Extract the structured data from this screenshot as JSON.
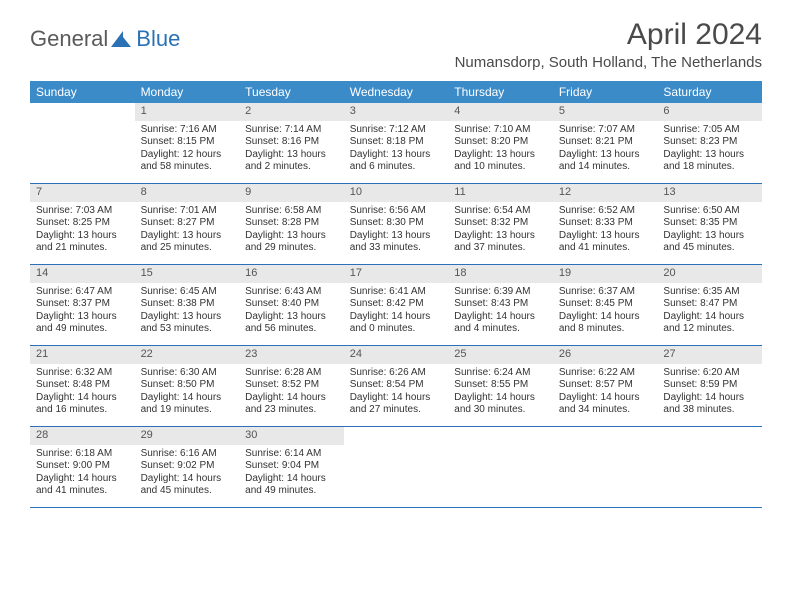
{
  "logo": {
    "general": "General",
    "blue": "Blue"
  },
  "title": "April 2024",
  "location": "Numansdorp, South Holland, The Netherlands",
  "colors": {
    "header_bg": "#3b8bc9",
    "daynum_bg": "#e8e8e8",
    "border": "#2a72b5",
    "logo_blue": "#2a72b5",
    "logo_gray": "#5a5a5a"
  },
  "day_names": [
    "Sunday",
    "Monday",
    "Tuesday",
    "Wednesday",
    "Thursday",
    "Friday",
    "Saturday"
  ],
  "start_offset": 1,
  "days": [
    {
      "n": 1,
      "sr": "7:16 AM",
      "ss": "8:15 PM",
      "dl": "12 hours and 58 minutes."
    },
    {
      "n": 2,
      "sr": "7:14 AM",
      "ss": "8:16 PM",
      "dl": "13 hours and 2 minutes."
    },
    {
      "n": 3,
      "sr": "7:12 AM",
      "ss": "8:18 PM",
      "dl": "13 hours and 6 minutes."
    },
    {
      "n": 4,
      "sr": "7:10 AM",
      "ss": "8:20 PM",
      "dl": "13 hours and 10 minutes."
    },
    {
      "n": 5,
      "sr": "7:07 AM",
      "ss": "8:21 PM",
      "dl": "13 hours and 14 minutes."
    },
    {
      "n": 6,
      "sr": "7:05 AM",
      "ss": "8:23 PM",
      "dl": "13 hours and 18 minutes."
    },
    {
      "n": 7,
      "sr": "7:03 AM",
      "ss": "8:25 PM",
      "dl": "13 hours and 21 minutes."
    },
    {
      "n": 8,
      "sr": "7:01 AM",
      "ss": "8:27 PM",
      "dl": "13 hours and 25 minutes."
    },
    {
      "n": 9,
      "sr": "6:58 AM",
      "ss": "8:28 PM",
      "dl": "13 hours and 29 minutes."
    },
    {
      "n": 10,
      "sr": "6:56 AM",
      "ss": "8:30 PM",
      "dl": "13 hours and 33 minutes."
    },
    {
      "n": 11,
      "sr": "6:54 AM",
      "ss": "8:32 PM",
      "dl": "13 hours and 37 minutes."
    },
    {
      "n": 12,
      "sr": "6:52 AM",
      "ss": "8:33 PM",
      "dl": "13 hours and 41 minutes."
    },
    {
      "n": 13,
      "sr": "6:50 AM",
      "ss": "8:35 PM",
      "dl": "13 hours and 45 minutes."
    },
    {
      "n": 14,
      "sr": "6:47 AM",
      "ss": "8:37 PM",
      "dl": "13 hours and 49 minutes."
    },
    {
      "n": 15,
      "sr": "6:45 AM",
      "ss": "8:38 PM",
      "dl": "13 hours and 53 minutes."
    },
    {
      "n": 16,
      "sr": "6:43 AM",
      "ss": "8:40 PM",
      "dl": "13 hours and 56 minutes."
    },
    {
      "n": 17,
      "sr": "6:41 AM",
      "ss": "8:42 PM",
      "dl": "14 hours and 0 minutes."
    },
    {
      "n": 18,
      "sr": "6:39 AM",
      "ss": "8:43 PM",
      "dl": "14 hours and 4 minutes."
    },
    {
      "n": 19,
      "sr": "6:37 AM",
      "ss": "8:45 PM",
      "dl": "14 hours and 8 minutes."
    },
    {
      "n": 20,
      "sr": "6:35 AM",
      "ss": "8:47 PM",
      "dl": "14 hours and 12 minutes."
    },
    {
      "n": 21,
      "sr": "6:32 AM",
      "ss": "8:48 PM",
      "dl": "14 hours and 16 minutes."
    },
    {
      "n": 22,
      "sr": "6:30 AM",
      "ss": "8:50 PM",
      "dl": "14 hours and 19 minutes."
    },
    {
      "n": 23,
      "sr": "6:28 AM",
      "ss": "8:52 PM",
      "dl": "14 hours and 23 minutes."
    },
    {
      "n": 24,
      "sr": "6:26 AM",
      "ss": "8:54 PM",
      "dl": "14 hours and 27 minutes."
    },
    {
      "n": 25,
      "sr": "6:24 AM",
      "ss": "8:55 PM",
      "dl": "14 hours and 30 minutes."
    },
    {
      "n": 26,
      "sr": "6:22 AM",
      "ss": "8:57 PM",
      "dl": "14 hours and 34 minutes."
    },
    {
      "n": 27,
      "sr": "6:20 AM",
      "ss": "8:59 PM",
      "dl": "14 hours and 38 minutes."
    },
    {
      "n": 28,
      "sr": "6:18 AM",
      "ss": "9:00 PM",
      "dl": "14 hours and 41 minutes."
    },
    {
      "n": 29,
      "sr": "6:16 AM",
      "ss": "9:02 PM",
      "dl": "14 hours and 45 minutes."
    },
    {
      "n": 30,
      "sr": "6:14 AM",
      "ss": "9:04 PM",
      "dl": "14 hours and 49 minutes."
    }
  ],
  "labels": {
    "sunrise": "Sunrise:",
    "sunset": "Sunset:",
    "daylight": "Daylight:"
  }
}
